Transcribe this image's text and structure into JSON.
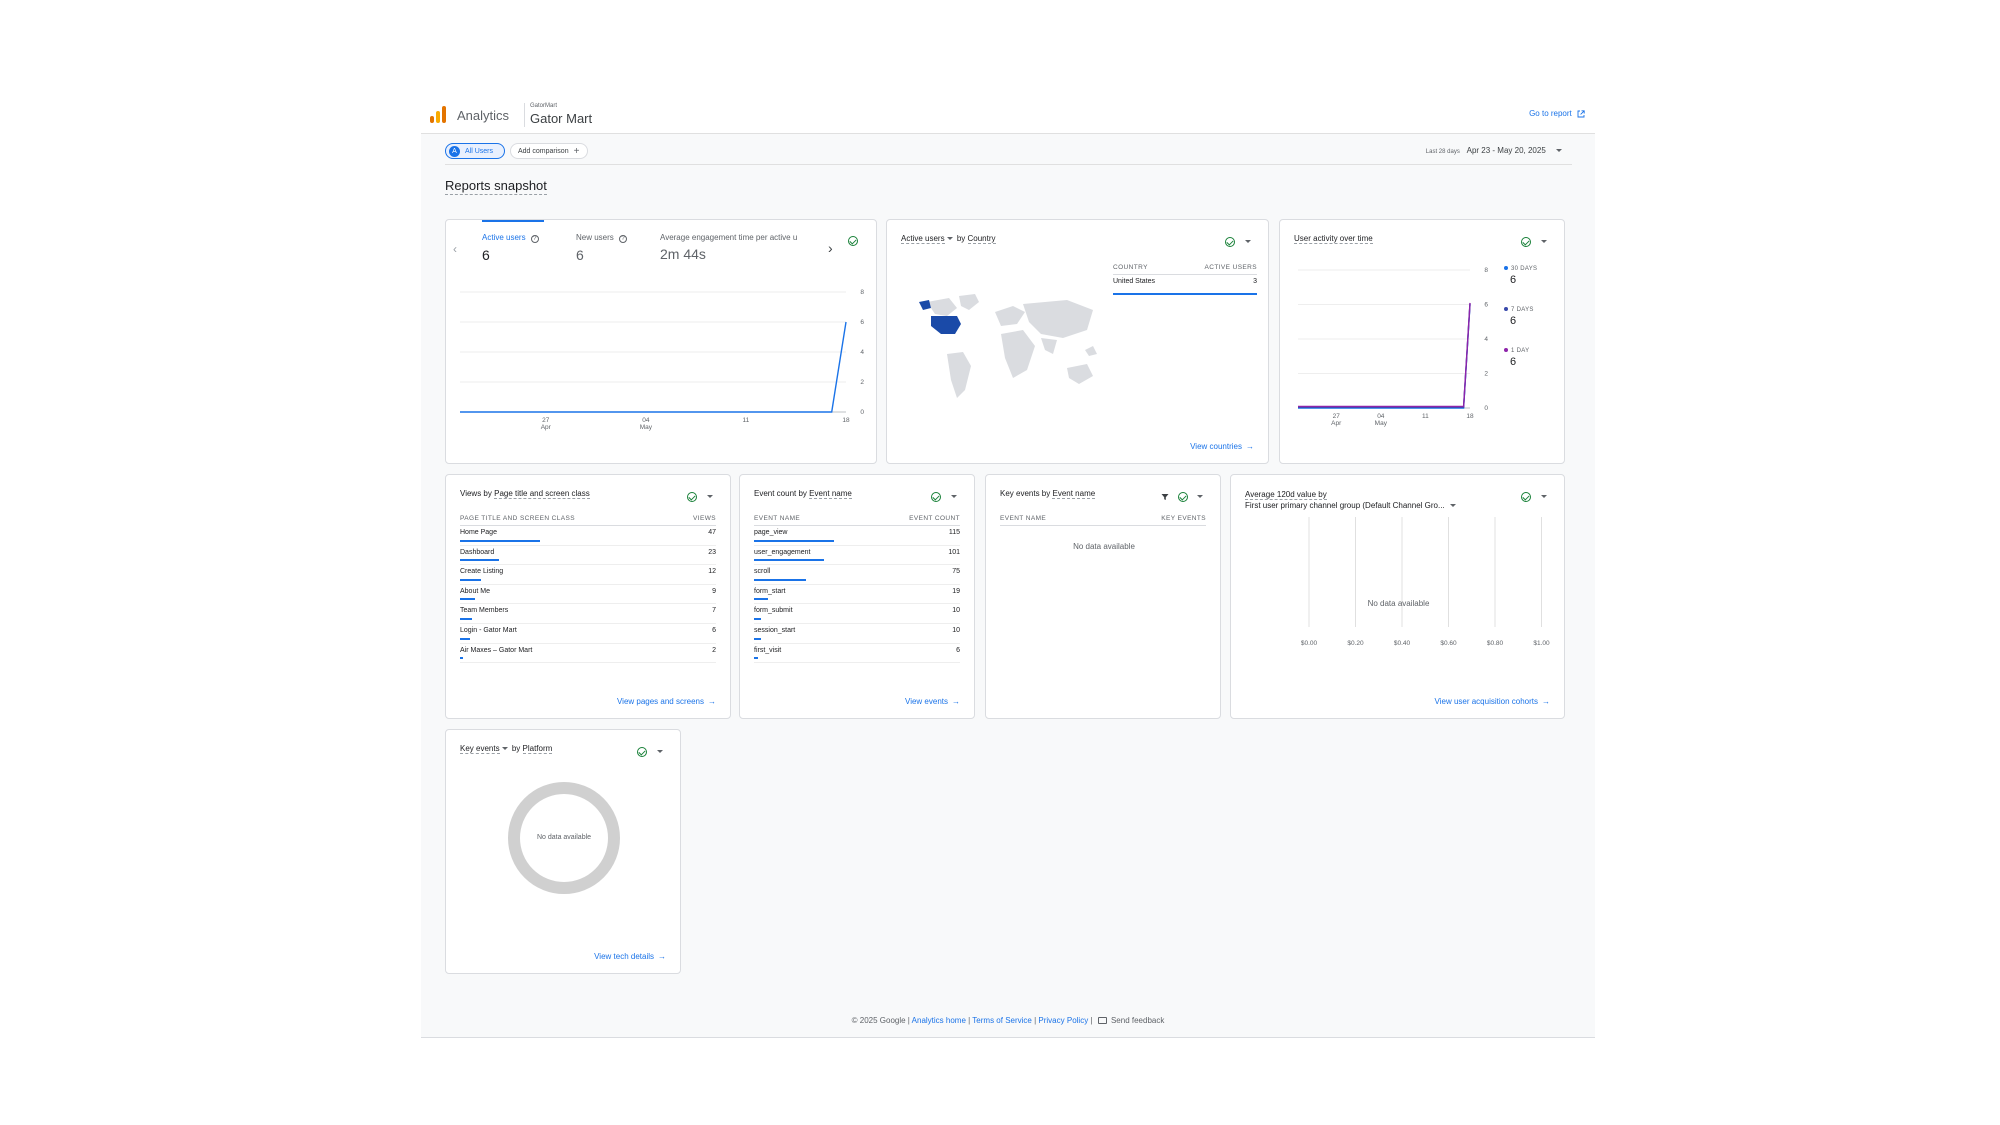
{
  "header": {
    "product": "Analytics",
    "account": "GatorMart",
    "property": "Gator Mart",
    "goto_report": "Go to report"
  },
  "comparison": {
    "all_users": "All Users",
    "all_users_avatar": "A",
    "add_comparison": "Add comparison",
    "date_label": "Last 28 days",
    "date_range": "Apr 23 - May 20, 2025"
  },
  "page_title": "Reports snapshot",
  "metrics_card": {
    "tabs": [
      {
        "label": "Active users",
        "value": "6"
      },
      {
        "label": "New users",
        "value": "6"
      },
      {
        "label": "Average engagement time per active u",
        "value": "2m 44s"
      }
    ],
    "chart_data": {
      "type": "line",
      "series": [
        {
          "values": [
            0,
            0,
            0,
            0,
            0,
            0,
            0,
            0,
            0,
            0,
            0,
            0,
            0,
            0,
            0,
            0,
            0,
            0,
            0,
            0,
            0,
            0,
            0,
            0,
            0,
            0,
            0,
            6
          ]
        }
      ],
      "x_ticks": [
        [
          "27",
          "Apr"
        ],
        [
          "04",
          "May"
        ],
        [
          "11",
          ""
        ],
        [
          "18",
          ""
        ]
      ],
      "y_ticks": [
        "8",
        "6",
        "4",
        "2",
        "0"
      ],
      "ylim": [
        0,
        8
      ]
    }
  },
  "country_card": {
    "title_metric": "Active users",
    "title_by": "by",
    "title_dim": "Country",
    "col_country": "COUNTRY",
    "col_users": "ACTIVE USERS",
    "rows": [
      {
        "country": "United States",
        "users": "3"
      }
    ],
    "link": "View countries",
    "highlight_color": "#1a4aa8"
  },
  "activity_card": {
    "title": "User activity over time",
    "legend": [
      {
        "label": "30 DAYS",
        "value": "6",
        "color": "#1a73e8"
      },
      {
        "label": "7 DAYS",
        "value": "6",
        "color": "#3949ab"
      },
      {
        "label": "1 DAY",
        "value": "6",
        "color": "#8e24aa"
      }
    ],
    "chart_data": {
      "type": "line",
      "series": [
        {
          "values": [
            0,
            0,
            0,
            0,
            0,
            0,
            0,
            0,
            0,
            0,
            0,
            0,
            0,
            0,
            0,
            0,
            0,
            0,
            0,
            0,
            0,
            0,
            0,
            0,
            0,
            0,
            0,
            6
          ]
        }
      ],
      "x_ticks": [
        [
          "27",
          "Apr"
        ],
        [
          "04",
          "May"
        ],
        [
          "11",
          ""
        ],
        [
          "18",
          ""
        ]
      ],
      "y_ticks": [
        "8",
        "6",
        "4",
        "2",
        "0"
      ],
      "ylim": [
        0,
        8
      ]
    }
  },
  "views_card": {
    "title_pre": "Views by",
    "title_dim": "Page title and screen class",
    "col_name": "PAGE TITLE AND SCREEN CLASS",
    "col_value": "VIEWS",
    "rows": [
      {
        "name": "Home Page",
        "value": "47",
        "frac": 1.0
      },
      {
        "name": "Dashboard",
        "value": "23",
        "frac": 0.49
      },
      {
        "name": "Create Listing",
        "value": "12",
        "frac": 0.26
      },
      {
        "name": "About Me",
        "value": "9",
        "frac": 0.19
      },
      {
        "name": "Team Members",
        "value": "7",
        "frac": 0.15
      },
      {
        "name": "Login - Gator Mart",
        "value": "6",
        "frac": 0.13
      },
      {
        "name": "Air Maxes – Gator Mart",
        "value": "2",
        "frac": 0.04
      }
    ],
    "link": "View pages and screens"
  },
  "events_card": {
    "title_pre": "Event count by",
    "title_dim": "Event name",
    "col_name": "EVENT NAME",
    "col_value": "EVENT COUNT",
    "rows": [
      {
        "name": "page_view",
        "value": "115",
        "frac": 1.0
      },
      {
        "name": "user_engagement",
        "value": "101",
        "frac": 0.88
      },
      {
        "name": "scroll",
        "value": "75",
        "frac": 0.65
      },
      {
        "name": "form_start",
        "value": "19",
        "frac": 0.17
      },
      {
        "name": "form_submit",
        "value": "10",
        "frac": 0.09
      },
      {
        "name": "session_start",
        "value": "10",
        "frac": 0.09
      },
      {
        "name": "first_visit",
        "value": "6",
        "frac": 0.05
      }
    ],
    "link": "View events"
  },
  "keyevents_card": {
    "title_pre": "Key events by",
    "title_dim": "Event name",
    "col_name": "EVENT NAME",
    "col_value": "KEY EVENTS",
    "no_data": "No data available"
  },
  "ltv_card": {
    "title_line1": "Average 120d value by",
    "title_line2": "First user primary channel group (Default Channel Gro...",
    "no_data": "No data available",
    "x_ticks": [
      "$0.00",
      "$0.20",
      "$0.40",
      "$0.60",
      "$0.80",
      "$1.00"
    ],
    "link": "View user acquisition cohorts"
  },
  "platform_card": {
    "title_metric": "Key events",
    "title_by": "by",
    "title_dim": "Platform",
    "no_data": "No data available",
    "link": "View tech details"
  },
  "footer": {
    "copyright": "© 2025 Google |",
    "analytics_home": "Analytics home",
    "terms": "Terms of Service",
    "privacy": "Privacy Policy",
    "feedback": "Send feedback"
  }
}
